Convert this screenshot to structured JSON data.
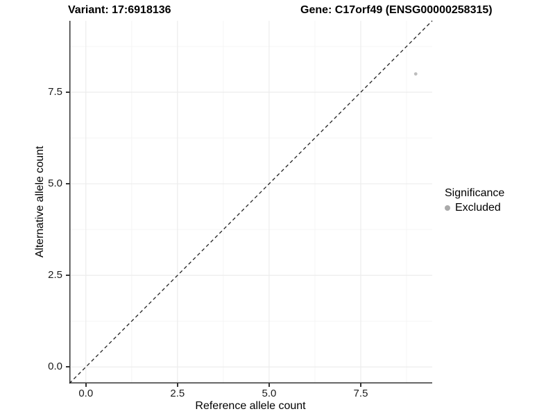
{
  "chart_data": {
    "type": "scatter",
    "title_left": "Variant: 17:6918136",
    "title_right": "Gene: C17orf49 (ENSG00000258315)",
    "xlabel": "Reference allele count",
    "ylabel": "Alternative allele count",
    "xlim": [
      -0.45,
      9.45
    ],
    "ylim": [
      -0.45,
      9.45
    ],
    "x_tick_values": [
      0,
      2.5,
      5,
      7.5
    ],
    "x_tick_labels": [
      "0.0",
      "2.5",
      "5.0",
      "7.5"
    ],
    "y_tick_values": [
      0,
      2.5,
      5,
      7.5
    ],
    "y_tick_labels": [
      "0.0",
      "2.5",
      "5.0",
      "7.5"
    ],
    "minor_tick_values": [
      1.25,
      3.75,
      6.25,
      8.75
    ],
    "grid": true,
    "reference_line": {
      "kind": "identity",
      "style": "dashed",
      "color": "#1f1f1f"
    },
    "series": [
      {
        "name": "Excluded",
        "color": "#bdbdbd",
        "point_radius": 2.4,
        "points": [
          {
            "x": 9,
            "y": 8
          }
        ]
      }
    ],
    "legend": {
      "title": "Significance",
      "position": "right",
      "entries": [
        {
          "label": "Excluded",
          "color": "#aaaaaa"
        }
      ]
    },
    "style_colors": {
      "major_grid": "#ececec",
      "minor_grid": "#f5f5f5",
      "axis_line": "#333333",
      "background": "#ffffff"
    }
  }
}
